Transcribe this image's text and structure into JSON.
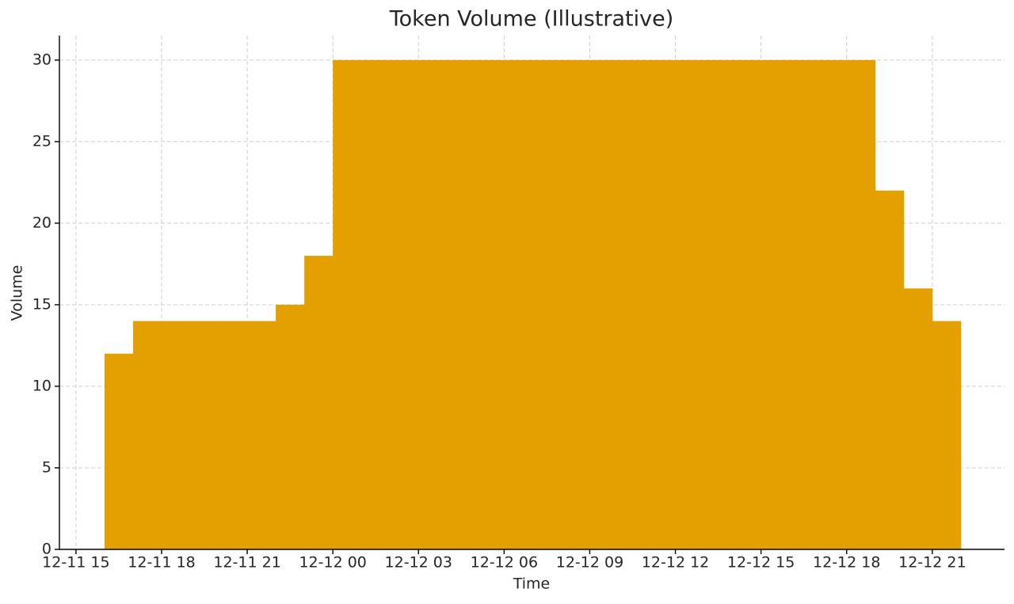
{
  "chart_data": {
    "type": "bar",
    "title": "Token Volume (Illustrative)",
    "x_label": "Time",
    "y_label": "Volume",
    "x": [
      "12-11 16",
      "12-11 17",
      "12-11 18",
      "12-11 19",
      "12-11 20",
      "12-11 21",
      "12-11 22",
      "12-11 23",
      "12-12 00",
      "12-12 01",
      "12-12 02",
      "12-12 03",
      "12-12 04",
      "12-12 05",
      "12-12 06",
      "12-12 07",
      "12-12 08",
      "12-12 09",
      "12-12 10",
      "12-12 11",
      "12-12 12",
      "12-12 13",
      "12-12 14",
      "12-12 15",
      "12-12 16",
      "12-12 17",
      "12-12 18",
      "12-12 19",
      "12-12 20",
      "12-12 21"
    ],
    "values": [
      12,
      14,
      14,
      14,
      14,
      14,
      15,
      18,
      30,
      30,
      30,
      30,
      30,
      30,
      30,
      30,
      30,
      30,
      30,
      30,
      30,
      30,
      30,
      30,
      30,
      30,
      30,
      22,
      16,
      14
    ],
    "color": "#e3a000",
    "xticks": [
      "12-11 15",
      "12-11 18",
      "12-11 21",
      "12-12 00",
      "12-12 03",
      "12-12 06",
      "12-12 09",
      "12-12 12",
      "12-12 15",
      "12-12 18",
      "12-12 21"
    ],
    "ylim": [
      0,
      31.5
    ],
    "yticks": [
      0,
      5,
      10,
      15,
      20,
      25,
      30
    ],
    "grid": true
  }
}
